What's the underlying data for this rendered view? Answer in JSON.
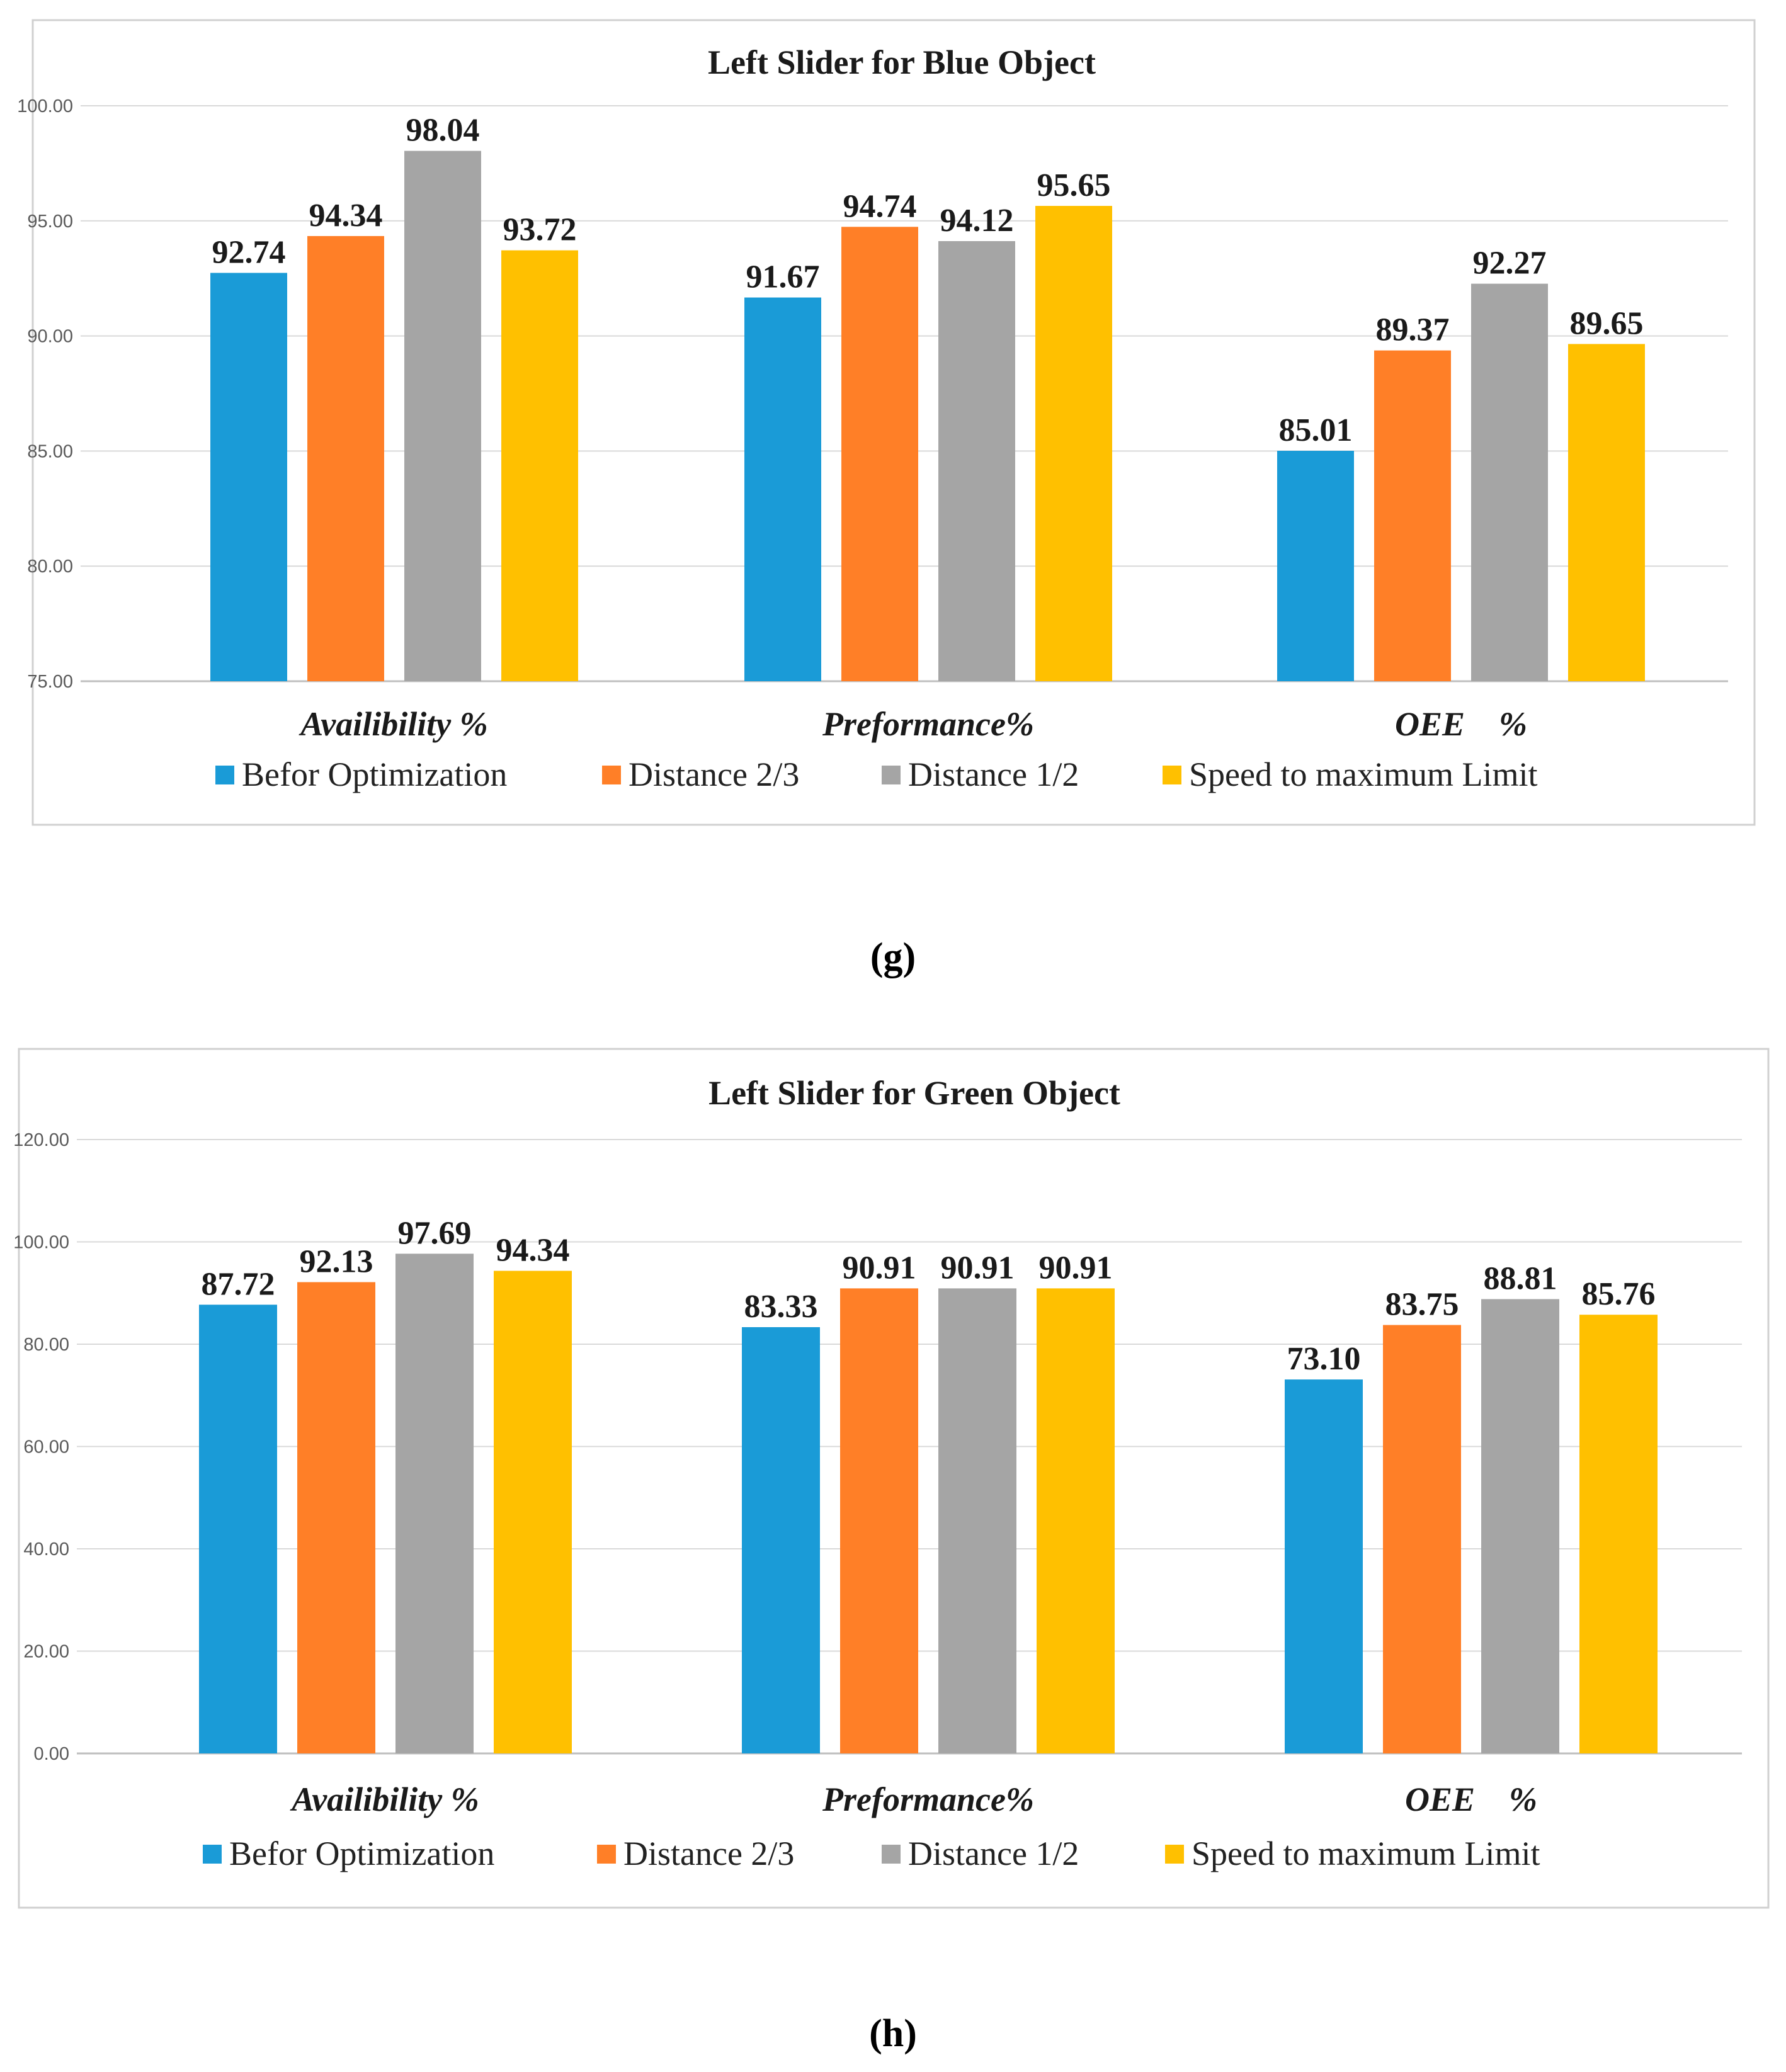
{
  "chart_data": [
    {
      "type": "bar",
      "title": "Left Slider for Blue Object",
      "categories": [
        "Availibility %",
        "Preformance%",
        "OEE    %"
      ],
      "series": [
        {
          "name": "Befor Optimization",
          "color": "#1A9BD7",
          "values": [
            92.74,
            91.67,
            85.01
          ],
          "labels": [
            "92.74",
            "91.67",
            "85.01"
          ]
        },
        {
          "name": "Distance 2/3",
          "color": "#FF7F27",
          "values": [
            94.34,
            94.74,
            89.37
          ],
          "labels": [
            "94.34",
            "94.74",
            "89.37"
          ]
        },
        {
          "name": "Distance 1/2",
          "color": "#A5A5A5",
          "values": [
            98.04,
            94.12,
            92.27
          ],
          "labels": [
            "98.04",
            "94.12",
            "92.27"
          ]
        },
        {
          "name": "Speed to maximum Limit",
          "color": "#FFC000",
          "values": [
            93.72,
            95.65,
            89.65
          ],
          "labels": [
            "93.72",
            "95.65",
            "89.65"
          ]
        }
      ],
      "ylim": [
        75,
        100
      ],
      "yticks": [
        "75.00",
        "80.00",
        "85.00",
        "90.00",
        "95.00",
        "100.00"
      ],
      "xlabel": "",
      "ylabel": "",
      "legend": "bottom",
      "grid": true,
      "panel_label": "(g)"
    },
    {
      "type": "bar",
      "title": "Left Slider for Green Object",
      "categories": [
        "Availibility %",
        "Preformance%",
        "OEE    %"
      ],
      "series": [
        {
          "name": "Befor Optimization",
          "color": "#1A9BD7",
          "values": [
            87.72,
            83.33,
            73.1
          ],
          "labels": [
            "87.72",
            "83.33",
            "73.10"
          ]
        },
        {
          "name": "Distance 2/3",
          "color": "#FF7F27",
          "values": [
            92.13,
            90.91,
            83.75
          ],
          "labels": [
            "92.13",
            "90.91",
            "83.75"
          ]
        },
        {
          "name": "Distance 1/2",
          "color": "#A5A5A5",
          "values": [
            97.69,
            90.91,
            88.81
          ],
          "labels": [
            "97.69",
            "90.91",
            "88.81"
          ]
        },
        {
          "name": "Speed to maximum Limit",
          "color": "#FFC000",
          "values": [
            94.34,
            90.91,
            85.76
          ],
          "labels": [
            "94.34",
            "90.91",
            "85.76"
          ]
        }
      ],
      "ylim": [
        0,
        120
      ],
      "yticks": [
        "0.00",
        "20.00",
        "40.00",
        "60.00",
        "80.00",
        "100.00",
        "120.00"
      ],
      "xlabel": "",
      "ylabel": "",
      "legend": "bottom",
      "grid": true,
      "panel_label": "(h)"
    }
  ]
}
